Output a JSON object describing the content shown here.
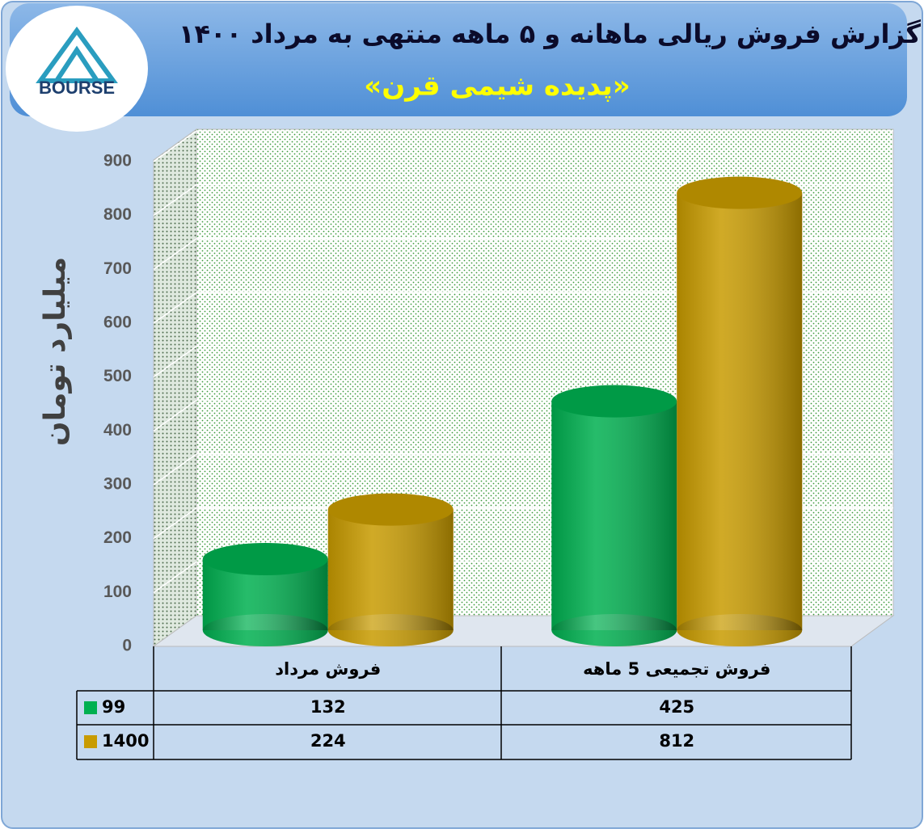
{
  "logo": {
    "text": "BOURSE"
  },
  "chart_data": {
    "type": "bar",
    "title": "گزارش فروش ریالی ماهانه و ۵ ماهه منتهی به مرداد ۱۴۰۰",
    "subtitle": "«پدیده شیمی قرن»",
    "y_label": "میلیارد تومان",
    "categories": [
      "فروش مرداد",
      "فروش تجمیعی 5  ماهه"
    ],
    "series": [
      {
        "name": "99",
        "color": "#00b050",
        "values": [
          132,
          425
        ]
      },
      {
        "name": "1400",
        "color": "#c89b00",
        "values": [
          224,
          812
        ]
      }
    ],
    "ylim": [
      0,
      900
    ],
    "yticks": [
      0,
      100,
      200,
      300,
      400,
      500,
      600,
      700,
      800,
      900
    ],
    "grid": true
  }
}
